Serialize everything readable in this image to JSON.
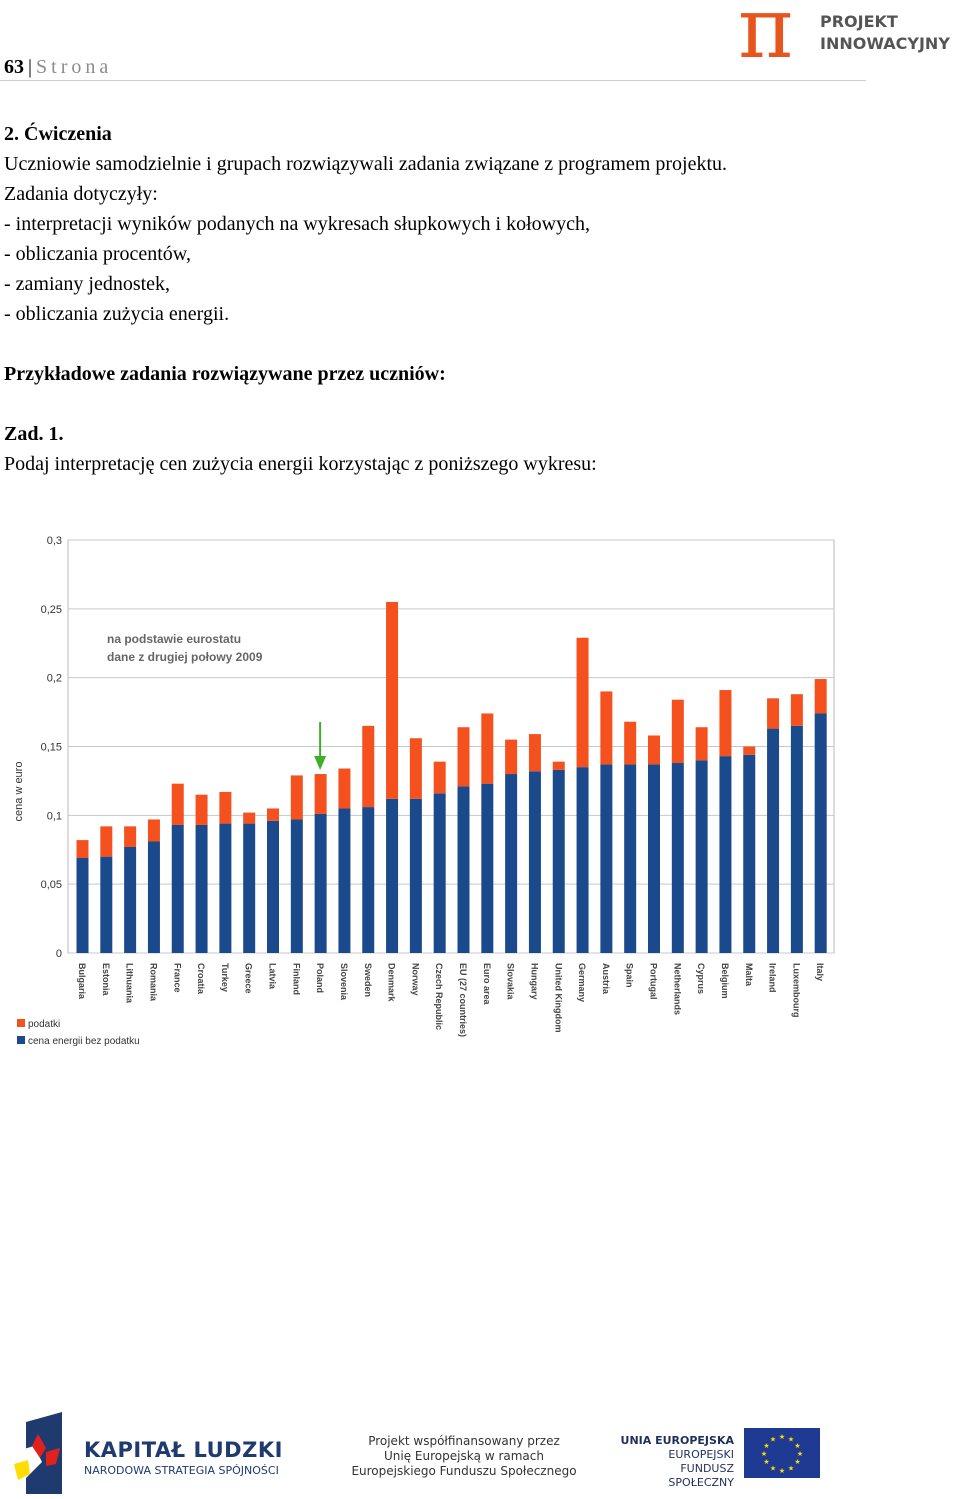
{
  "header": {
    "page_number": "63",
    "separator": "|",
    "page_word": "Strona",
    "logo_symbol": "π",
    "logo_line1": "PROJEKT",
    "logo_line2": "INNOWACYJNY"
  },
  "body": {
    "section_heading": "2. Ćwiczenia",
    "intro_line": "Uczniowie samodzielnie i grupach rozwiązywali zadania związane z programem projektu.",
    "topics_intro": "Zadania dotyczyły:",
    "topics": [
      "- interpretacji wyników podanych na wykresach słupkowych i kołowych,",
      "- obliczania procentów,",
      "- zamiany jednostek,",
      "- obliczania zużycia energii."
    ],
    "examples_heading": "Przykładowe zadania rozwiązywane przez uczniów:",
    "task_label": "Zad. 1.",
    "task_text": "Podaj interpretację cen zużycia energii korzystając z poniższego wykresu:"
  },
  "chart_data": {
    "type": "bar",
    "stacked": true,
    "ylabel": "cena w euro",
    "ylim": [
      0,
      0.3
    ],
    "yticks": [
      "0",
      "0,05",
      "0,1",
      "0,15",
      "0,2",
      "0,25",
      "0,3"
    ],
    "grid": true,
    "annotation": [
      "na podstawie eurostatu",
      "dane z drugiej połowy 2009"
    ],
    "highlight_category": "Poland",
    "legend_position": "bottom-left",
    "categories": [
      "Bulgaria",
      "Estonia",
      "Lithuania",
      "Romania",
      "France",
      "Croatia",
      "Turkey",
      "Greece",
      "Latvia",
      "Finland",
      "Poland",
      "Slovenia",
      "Sweden",
      "Denmark",
      "Norway",
      "Czech Republic",
      "EU (27 countries)",
      "Euro area",
      "Slovakia",
      "Hungary",
      "United Kingdom",
      "Germany",
      "Austria",
      "Spain",
      "Portugal",
      "Netherlands",
      "Cyprus",
      "Belgium",
      "Malta",
      "Ireland",
      "Luxembourg",
      "Italy"
    ],
    "series": [
      {
        "name": "cena energii bez podatku",
        "color": "#1b4a8c",
        "values": [
          0.069,
          0.07,
          0.077,
          0.081,
          0.093,
          0.093,
          0.094,
          0.094,
          0.096,
          0.097,
          0.101,
          0.105,
          0.106,
          0.112,
          0.112,
          0.116,
          0.121,
          0.123,
          0.13,
          0.132,
          0.133,
          0.135,
          0.137,
          0.137,
          0.137,
          0.138,
          0.14,
          0.143,
          0.144,
          0.163,
          0.165,
          0.174
        ]
      },
      {
        "name": "podatki",
        "color": "#f4511e",
        "values": [
          0.013,
          0.022,
          0.015,
          0.016,
          0.03,
          0.022,
          0.023,
          0.008,
          0.009,
          0.032,
          0.029,
          0.029,
          0.059,
          0.143,
          0.044,
          0.023,
          0.043,
          0.051,
          0.025,
          0.027,
          0.006,
          0.094,
          0.053,
          0.031,
          0.021,
          0.046,
          0.024,
          0.048,
          0.006,
          0.022,
          0.023,
          0.025
        ]
      }
    ]
  },
  "footer": {
    "kl_title": "KAPITAŁ LUDZKI",
    "kl_subtitle": "NARODOWA STRATEGIA SPÓJNOŚCI",
    "cofinance_lines": [
      "Projekt współfinansowany przez",
      "Unię Europejską w ramach",
      "Europejskiego Funduszu Społecznego"
    ],
    "ue_lines": [
      "UNIA EUROPEJSKA",
      "EUROPEJSKI",
      "FUNDUSZ SPOŁECZNY"
    ],
    "colors": {
      "eu_blue": "#1f3a93",
      "eu_star": "#ffdd00",
      "kl_blue": "#1f3a6e",
      "kl_red": "#e2211c"
    }
  }
}
